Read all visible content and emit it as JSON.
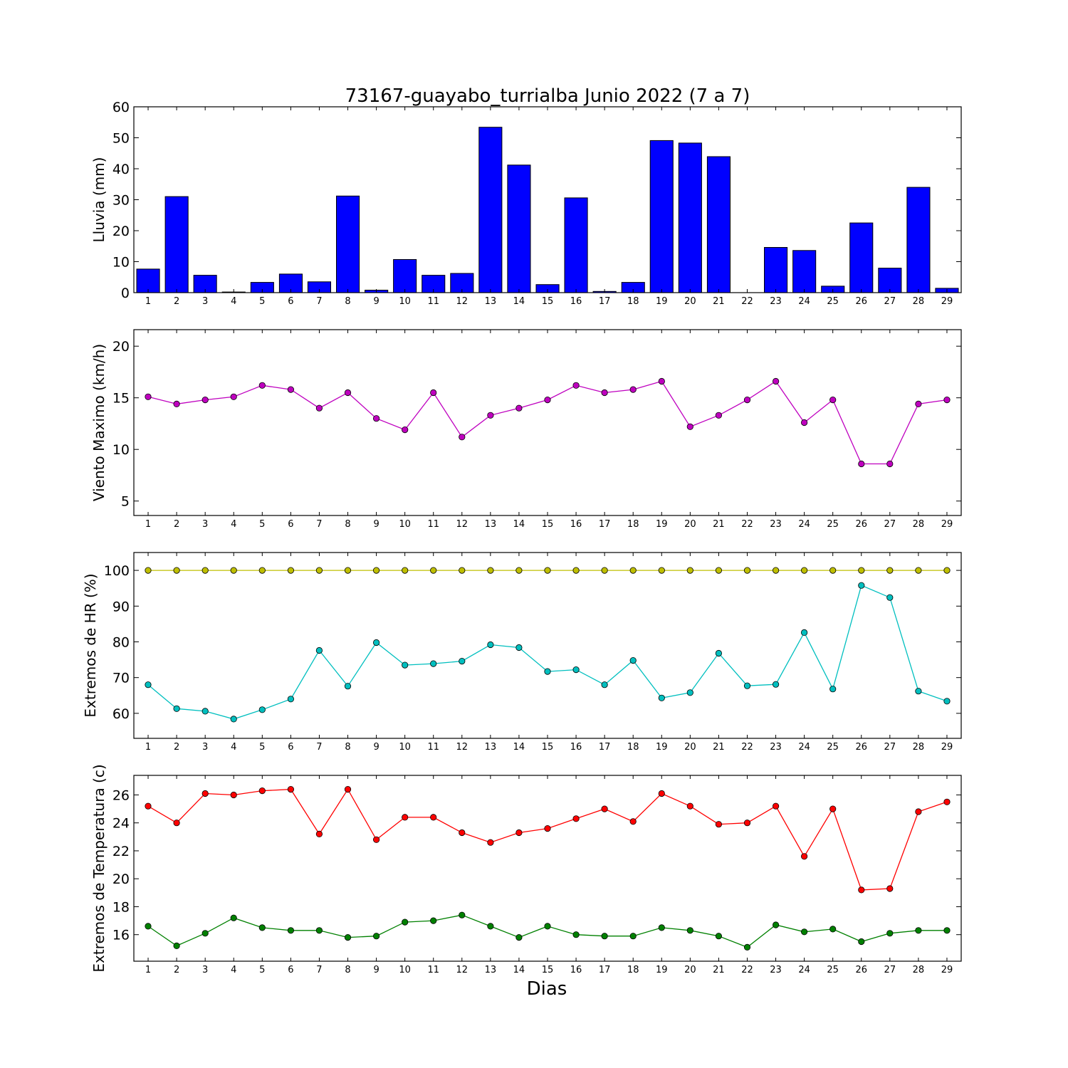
{
  "figure": {
    "title": "73167-guayabo_turrialba Junio 2022  (7 a 7)",
    "xlabel": "Dias"
  },
  "chart_data": [
    {
      "type": "bar",
      "ylabel": "Lluvia (mm)",
      "ylim": [
        0,
        60
      ],
      "yticks": [
        0,
        10,
        20,
        30,
        40,
        50,
        60
      ],
      "x": [
        1,
        2,
        3,
        4,
        5,
        6,
        7,
        8,
        9,
        10,
        11,
        12,
        13,
        14,
        15,
        16,
        17,
        18,
        19,
        20,
        21,
        22,
        23,
        24,
        25,
        26,
        27,
        28,
        29
      ],
      "series": [
        {
          "color": "#0000ff",
          "values": [
            7.6,
            31.0,
            5.6,
            0.2,
            3.3,
            6.0,
            3.5,
            31.2,
            0.8,
            10.7,
            5.6,
            6.2,
            53.4,
            41.2,
            2.6,
            30.6,
            0.4,
            3.3,
            49.1,
            48.3,
            43.9,
            0.0,
            14.6,
            13.6,
            2.1,
            22.5,
            7.9,
            34.0,
            1.4
          ]
        }
      ]
    },
    {
      "type": "line",
      "ylabel": "Viento Maximo (km/h)",
      "ylim": [
        3.6,
        21.6
      ],
      "yticks": [
        5,
        10,
        15,
        20
      ],
      "x": [
        1,
        2,
        3,
        4,
        5,
        6,
        7,
        8,
        9,
        10,
        11,
        12,
        13,
        14,
        15,
        16,
        17,
        18,
        19,
        20,
        21,
        22,
        23,
        24,
        25,
        26,
        27,
        28,
        29
      ],
      "series": [
        {
          "color": "#bf00bf",
          "values": [
            15.1,
            14.4,
            14.8,
            15.1,
            16.2,
            15.8,
            14.0,
            15.5,
            13.0,
            11.9,
            15.5,
            11.2,
            13.3,
            14.0,
            14.8,
            16.2,
            15.5,
            15.8,
            16.6,
            12.2,
            13.3,
            14.8,
            16.6,
            12.6,
            14.8,
            8.6,
            8.6,
            14.4,
            14.8
          ]
        }
      ]
    },
    {
      "type": "line",
      "ylabel": "Extremos de HR (%)",
      "ylim": [
        53,
        105
      ],
      "yticks": [
        60,
        70,
        80,
        90,
        100
      ],
      "x": [
        1,
        2,
        3,
        4,
        5,
        6,
        7,
        8,
        9,
        10,
        11,
        12,
        13,
        14,
        15,
        16,
        17,
        18,
        19,
        20,
        21,
        22,
        23,
        24,
        25,
        26,
        27,
        28,
        29
      ],
      "series": [
        {
          "color": "#bfbf00",
          "values": [
            100,
            100,
            100,
            100,
            100,
            100,
            100,
            100,
            100,
            100,
            100,
            100,
            100,
            100,
            100,
            100,
            100,
            100,
            100,
            100,
            100,
            100,
            100,
            100,
            100,
            100,
            100,
            100,
            100
          ]
        },
        {
          "color": "#00bfbf",
          "values": [
            68.0,
            61.3,
            60.6,
            58.4,
            61.0,
            64.0,
            77.6,
            67.6,
            79.8,
            73.5,
            73.9,
            74.6,
            79.2,
            78.4,
            71.7,
            72.2,
            68.0,
            74.8,
            64.3,
            65.8,
            76.8,
            67.7,
            68.1,
            82.6,
            66.8,
            95.8,
            92.4,
            66.2,
            63.4
          ]
        }
      ]
    },
    {
      "type": "line",
      "ylabel": "Extremos de Temperatura (c)",
      "ylim": [
        14.1,
        27.4
      ],
      "yticks": [
        16,
        18,
        20,
        22,
        24,
        26
      ],
      "x": [
        1,
        2,
        3,
        4,
        5,
        6,
        7,
        8,
        9,
        10,
        11,
        12,
        13,
        14,
        15,
        16,
        17,
        18,
        19,
        20,
        21,
        22,
        23,
        24,
        25,
        26,
        27,
        28,
        29
      ],
      "series": [
        {
          "color": "#ff0000",
          "values": [
            25.2,
            24.0,
            26.1,
            26.0,
            26.3,
            26.4,
            23.2,
            26.4,
            22.8,
            24.4,
            24.4,
            23.3,
            22.6,
            23.3,
            23.6,
            24.3,
            25.0,
            24.1,
            26.1,
            25.2,
            23.9,
            24.0,
            25.2,
            21.6,
            25.0,
            19.2,
            19.3,
            24.8,
            25.5
          ]
        },
        {
          "color": "#008000",
          "values": [
            16.6,
            15.2,
            16.1,
            17.2,
            16.5,
            16.3,
            16.3,
            15.8,
            15.9,
            16.9,
            17.0,
            17.4,
            16.6,
            15.8,
            16.6,
            16.0,
            15.9,
            15.9,
            16.5,
            16.3,
            15.9,
            15.1,
            16.7,
            16.2,
            16.4,
            15.5,
            16.1,
            16.3,
            16.3
          ]
        }
      ]
    }
  ]
}
